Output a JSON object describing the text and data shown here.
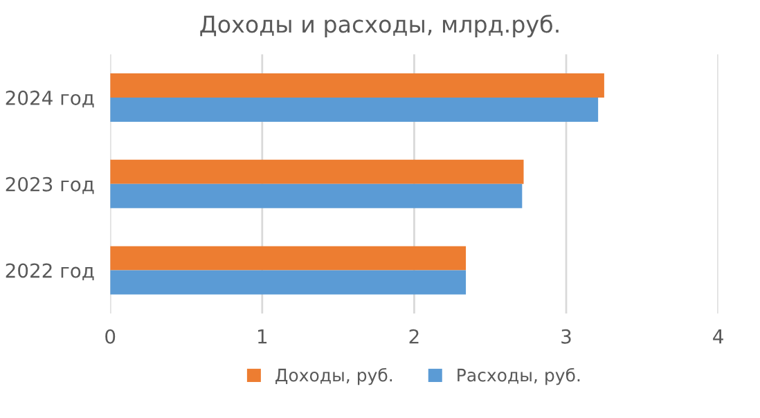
{
  "chart_data": {
    "type": "bar",
    "orientation": "horizontal",
    "title": "Доходы и расходы, млрд.руб.",
    "categories": [
      "2024 год",
      "2023 год",
      "2022 год"
    ],
    "series": [
      {
        "name": "Доходы, руб.",
        "color": "#ed7d31",
        "values": [
          3.25,
          2.72,
          2.34
        ]
      },
      {
        "name": "Расходы, руб.",
        "color": "#5b9bd5",
        "values": [
          3.21,
          2.71,
          2.34
        ]
      }
    ],
    "xlim": [
      0,
      4
    ],
    "xticks": [
      0,
      1,
      2,
      3,
      4
    ],
    "grid": "x",
    "legend": "bottom"
  }
}
